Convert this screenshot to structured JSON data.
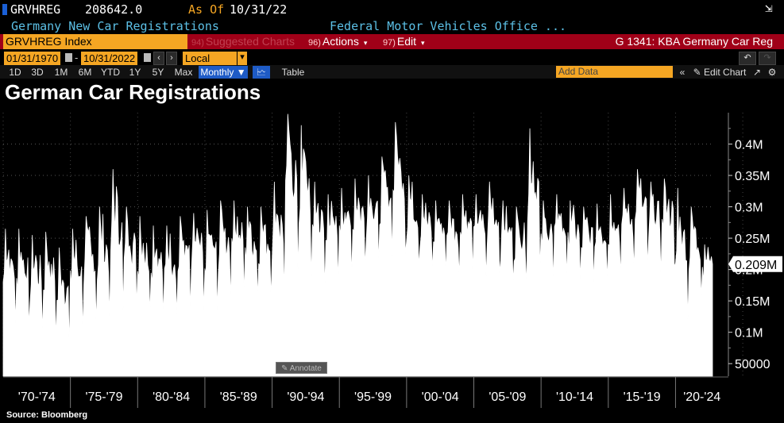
{
  "header": {
    "ticker": "GRVHREG",
    "last_value": "208642.0",
    "as_of_label": "As Of",
    "as_of_date": "10/31/22",
    "description": "Germany New Car Registrations",
    "source_name": "Federal Motor Vehicles Office ..."
  },
  "toolbar": {
    "security": "GRVHREG Index",
    "suggested_num": "94)",
    "suggested_label": "Suggested Charts",
    "actions_num": "96)",
    "actions_label": "Actions",
    "edit_num": "97)",
    "edit_label": "Edit",
    "chart_id": "G 1341: KBA Germany Car Reg"
  },
  "range": {
    "start": "01/31/1970",
    "end": "10/31/2022",
    "currency": "Local CCY"
  },
  "periods": [
    "1D",
    "3D",
    "1M",
    "6M",
    "YTD",
    "1Y",
    "5Y",
    "Max"
  ],
  "frequency": "Monthly",
  "table_label": "Table",
  "add_data_placeholder": "Add Data",
  "edit_chart_label": "Edit Chart",
  "title": "German Car Registrations",
  "annotate_label": "Annotate",
  "source": "Source: Bloomberg",
  "colors": {
    "accent_orange": "#f5a623",
    "toolbar_red": "#a00018",
    "header_cyan": "#5cc0e6",
    "selected_blue": "#1e5bc6"
  },
  "chart_data": {
    "type": "area",
    "series_name": "GRVHREG Index",
    "frequency": "monthly",
    "x_start": "1970-01",
    "x_end": "2022-10",
    "current_value": 208642,
    "current_label": "0.209M",
    "ylim": [
      30000,
      450000
    ],
    "yticks": [
      {
        "v": 50000,
        "label": "50000"
      },
      {
        "v": 100000,
        "label": "0.1M"
      },
      {
        "v": 150000,
        "label": "0.15M"
      },
      {
        "v": 200000,
        "label": "0.2M"
      },
      {
        "v": 250000,
        "label": "0.25M"
      },
      {
        "v": 300000,
        "label": "0.3M"
      },
      {
        "v": 350000,
        "label": "0.35M"
      },
      {
        "v": 400000,
        "label": "0.4M"
      }
    ],
    "x_periods": [
      "'70-'74",
      "'75-'79",
      "'80-'84",
      "'85-'89",
      "'90-'94",
      "'95-'99",
      "'00-'04",
      "'05-'09",
      "'10-'14",
      "'15-'19",
      "'20-'24"
    ],
    "annual_profile": [
      {
        "year": 1970,
        "low": 115000,
        "high": 265000
      },
      {
        "year": 1971,
        "low": 110000,
        "high": 265000
      },
      {
        "year": 1972,
        "low": 100000,
        "high": 255000
      },
      {
        "year": 1973,
        "low": 90000,
        "high": 260000
      },
      {
        "year": 1974,
        "low": 75000,
        "high": 235000
      },
      {
        "year": 1975,
        "low": 100000,
        "high": 265000
      },
      {
        "year": 1976,
        "low": 115000,
        "high": 285000
      },
      {
        "year": 1977,
        "low": 125000,
        "high": 300000
      },
      {
        "year": 1978,
        "low": 135000,
        "high": 360000
      },
      {
        "year": 1979,
        "low": 140000,
        "high": 300000
      },
      {
        "year": 1980,
        "low": 130000,
        "high": 285000
      },
      {
        "year": 1981,
        "low": 125000,
        "high": 270000
      },
      {
        "year": 1982,
        "low": 130000,
        "high": 270000
      },
      {
        "year": 1983,
        "low": 135000,
        "high": 285000
      },
      {
        "year": 1984,
        "low": 135000,
        "high": 290000
      },
      {
        "year": 1985,
        "low": 135000,
        "high": 295000
      },
      {
        "year": 1986,
        "low": 150000,
        "high": 310000
      },
      {
        "year": 1987,
        "low": 160000,
        "high": 310000
      },
      {
        "year": 1988,
        "low": 155000,
        "high": 300000
      },
      {
        "year": 1989,
        "low": 155000,
        "high": 300000
      },
      {
        "year": 1990,
        "low": 160000,
        "high": 340000
      },
      {
        "year": 1991,
        "low": 200000,
        "high": 448000
      },
      {
        "year": 1992,
        "low": 185000,
        "high": 430000
      },
      {
        "year": 1993,
        "low": 170000,
        "high": 340000
      },
      {
        "year": 1994,
        "low": 180000,
        "high": 320000
      },
      {
        "year": 1995,
        "low": 190000,
        "high": 330000
      },
      {
        "year": 1996,
        "low": 205000,
        "high": 345000
      },
      {
        "year": 1997,
        "low": 210000,
        "high": 350000
      },
      {
        "year": 1998,
        "low": 220000,
        "high": 380000
      },
      {
        "year": 1999,
        "low": 225000,
        "high": 435000
      },
      {
        "year": 2000,
        "low": 205000,
        "high": 350000
      },
      {
        "year": 2001,
        "low": 200000,
        "high": 320000
      },
      {
        "year": 2002,
        "low": 195000,
        "high": 310000
      },
      {
        "year": 2003,
        "low": 190000,
        "high": 310000
      },
      {
        "year": 2004,
        "low": 195000,
        "high": 320000
      },
      {
        "year": 2005,
        "low": 190000,
        "high": 320000
      },
      {
        "year": 2006,
        "low": 195000,
        "high": 340000
      },
      {
        "year": 2007,
        "low": 180000,
        "high": 310000
      },
      {
        "year": 2008,
        "low": 175000,
        "high": 300000
      },
      {
        "year": 2009,
        "low": 200000,
        "high": 425000
      },
      {
        "year": 2010,
        "low": 180000,
        "high": 310000
      },
      {
        "year": 2011,
        "low": 190000,
        "high": 320000
      },
      {
        "year": 2012,
        "low": 185000,
        "high": 310000
      },
      {
        "year": 2013,
        "low": 180000,
        "high": 300000
      },
      {
        "year": 2014,
        "low": 185000,
        "high": 305000
      },
      {
        "year": 2015,
        "low": 190000,
        "high": 320000
      },
      {
        "year": 2016,
        "low": 200000,
        "high": 330000
      },
      {
        "year": 2017,
        "low": 205000,
        "high": 360000
      },
      {
        "year": 2018,
        "low": 190000,
        "high": 340000
      },
      {
        "year": 2019,
        "low": 205000,
        "high": 345000
      },
      {
        "year": 2020,
        "low": 120000,
        "high": 330000
      },
      {
        "year": 2021,
        "low": 155000,
        "high": 300000
      },
      {
        "year": 2022,
        "low": 180000,
        "high": 240000
      }
    ],
    "grid": true,
    "yaxis_side": "right"
  }
}
